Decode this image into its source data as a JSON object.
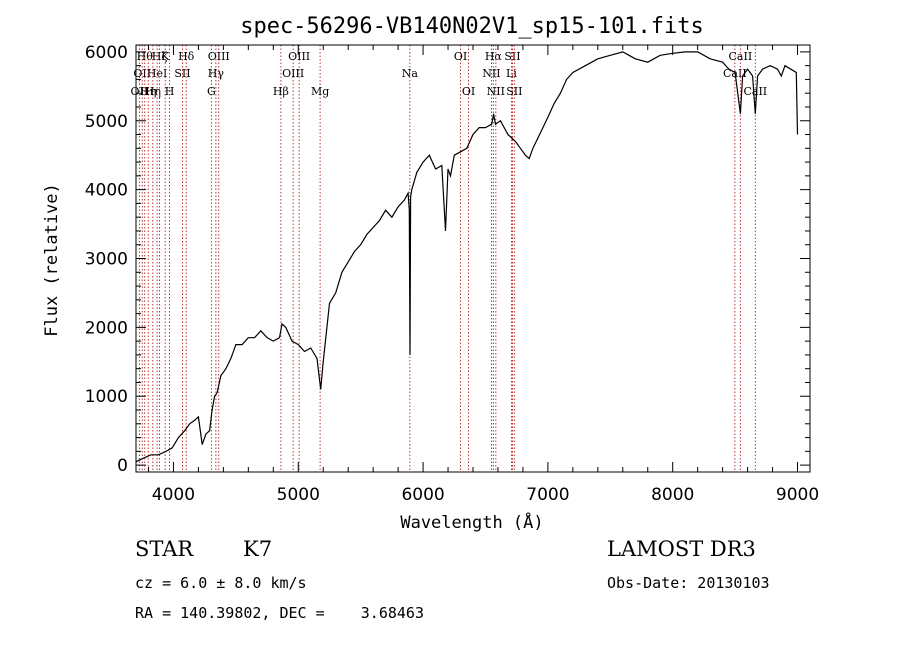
{
  "chart_data": {
    "type": "line",
    "title": "spec-56296-VB140N02V1_sp15-101.fits",
    "xlabel": "Wavelength (Å)",
    "ylabel": "Flux (relative)",
    "xlim": [
      3700,
      9100
    ],
    "ylim": [
      -100,
      6100
    ],
    "xticks": [
      4000,
      5000,
      6000,
      7000,
      8000,
      9000
    ],
    "yticks": [
      0,
      1000,
      2000,
      3000,
      4000,
      5000,
      6000
    ],
    "spectrum": {
      "x": [
        3700,
        3760,
        3820,
        3880,
        3940,
        3990,
        4040,
        4090,
        4130,
        4170,
        4200,
        4230,
        4260,
        4290,
        4310,
        4330,
        4350,
        4380,
        4420,
        4460,
        4500,
        4550,
        4600,
        4650,
        4700,
        4750,
        4800,
        4850,
        4870,
        4900,
        4950,
        5000,
        5050,
        5100,
        5150,
        5180,
        5200,
        5250,
        5300,
        5350,
        5400,
        5450,
        5500,
        5550,
        5600,
        5650,
        5700,
        5750,
        5800,
        5850,
        5880,
        5890,
        5895,
        5900,
        5910,
        5950,
        6000,
        6050,
        6100,
        6150,
        6180,
        6200,
        6220,
        6250,
        6300,
        6350,
        6400,
        6450,
        6500,
        6550,
        6565,
        6580,
        6620,
        6680,
        6740,
        6780,
        6820,
        6850,
        6880,
        6920,
        6960,
        7000,
        7050,
        7100,
        7150,
        7200,
        7300,
        7400,
        7500,
        7600,
        7650,
        7700,
        7800,
        7900,
        8000,
        8100,
        8200,
        8300,
        8400,
        8450,
        8500,
        8542,
        8560,
        8600,
        8640,
        8662,
        8680,
        8720,
        8780,
        8840,
        8870,
        8900,
        8990,
        9000
      ],
      "y": [
        50,
        100,
        150,
        150,
        200,
        250,
        400,
        500,
        600,
        650,
        700,
        300,
        450,
        500,
        800,
        1000,
        1050,
        1300,
        1400,
        1550,
        1750,
        1750,
        1850,
        1850,
        1950,
        1850,
        1800,
        1850,
        2050,
        2000,
        1800,
        1750,
        1650,
        1700,
        1550,
        1100,
        1500,
        2350,
        2500,
        2800,
        2950,
        3100,
        3200,
        3350,
        3450,
        3550,
        3700,
        3600,
        3750,
        3850,
        3950,
        3700,
        1600,
        3900,
        4000,
        4250,
        4400,
        4500,
        4300,
        4350,
        3400,
        4300,
        4200,
        4500,
        4550,
        4600,
        4800,
        4900,
        4900,
        4950,
        5100,
        4950,
        5000,
        4800,
        4700,
        4600,
        4500,
        4450,
        4600,
        4750,
        4900,
        5050,
        5250,
        5400,
        5600,
        5700,
        5800,
        5900,
        5950,
        6000,
        5950,
        5900,
        5850,
        5950,
        5980,
        6000,
        6000,
        5900,
        5850,
        5750,
        5700,
        5100,
        5650,
        5750,
        5650,
        5100,
        5650,
        5750,
        5800,
        5750,
        5650,
        5800,
        5700,
        4800
      ]
    },
    "lines": [
      {
        "x": 3727,
        "label": "OII",
        "row": 2
      },
      {
        "x": 3750,
        "label": "OII",
        "row": 1
      },
      {
        "x": 3770,
        "label": "Hθ",
        "row": 0
      },
      {
        "x": 3798,
        "label": "Hη",
        "row": 2
      },
      {
        "x": 3835,
        "label": "Hη",
        "row": 2
      },
      {
        "x": 3869,
        "label": "HeI",
        "row": 1
      },
      {
        "x": 3889,
        "label": "Hζ",
        "row": 0
      },
      {
        "x": 3934,
        "label": "K",
        "row": 0
      },
      {
        "x": 3969,
        "label": "H",
        "row": 2
      },
      {
        "x": 4072,
        "label": "SII",
        "row": 1
      },
      {
        "x": 4102,
        "label": "Hδ",
        "row": 0
      },
      {
        "x": 4304,
        "label": "G",
        "row": 2
      },
      {
        "x": 4340,
        "label": "Hγ",
        "row": 1
      },
      {
        "x": 4363,
        "label": "OIII",
        "row": 0
      },
      {
        "x": 4861,
        "label": "Hβ",
        "row": 2
      },
      {
        "x": 4959,
        "label": "OIII",
        "row": 1
      },
      {
        "x": 5007,
        "label": "OIII",
        "row": 0
      },
      {
        "x": 5175,
        "label": "Mg",
        "row": 2
      },
      {
        "x": 5894,
        "label": "Na",
        "row": 1
      },
      {
        "x": 6300,
        "label": "OI",
        "row": 0
      },
      {
        "x": 6364,
        "label": "OI",
        "row": 2
      },
      {
        "x": 6548,
        "label": "NII",
        "row": 1
      },
      {
        "x": 6563,
        "label": "Hα",
        "row": 0
      },
      {
        "x": 6583,
        "label": "NII",
        "row": 2
      },
      {
        "x": 6708,
        "label": "Li",
        "row": 1
      },
      {
        "x": 6716,
        "label": "SII",
        "row": 0
      },
      {
        "x": 6731,
        "label": "SII",
        "row": 2
      },
      {
        "x": 8498,
        "label": "CaII",
        "row": 1
      },
      {
        "x": 8542,
        "label": "CaII",
        "row": 0
      },
      {
        "x": 8662,
        "label": "CaII",
        "row": 2
      }
    ]
  },
  "info": {
    "object_class": "STAR",
    "subclass": "K7",
    "survey": "LAMOST DR3",
    "redshift": "cz = 6.0 ± 8.0 km/s",
    "obs_date": "Obs-Date: 20130103",
    "coordinates": "RA = 140.39802, DEC =    3.68463"
  },
  "colors": {
    "spectrum": "#000000",
    "line_markers": "#b22222",
    "axes": "#000000"
  }
}
